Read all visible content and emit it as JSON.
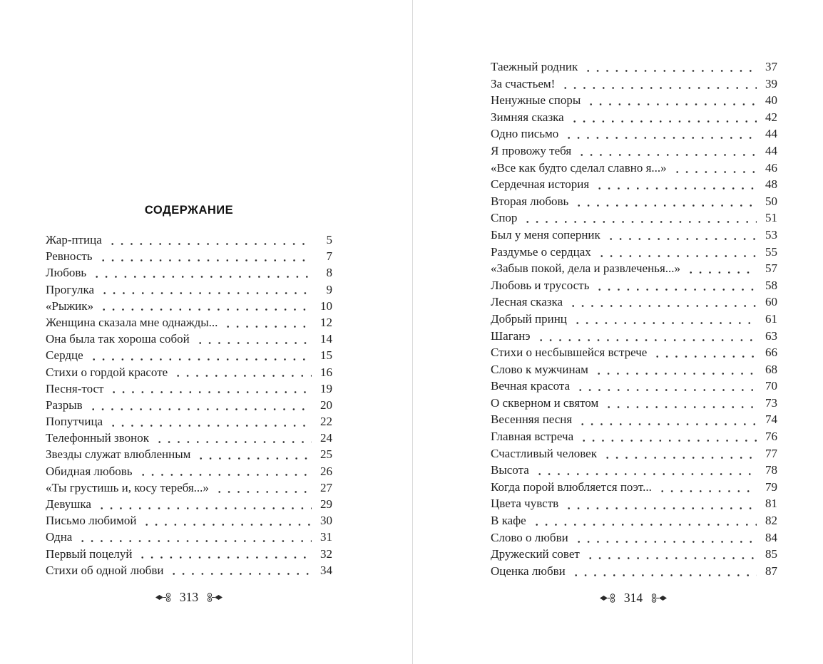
{
  "page_left": {
    "heading": "СОДЕРЖАНИЕ",
    "page_number": "313",
    "entries": [
      {
        "title": "Жар-птица",
        "page": "5"
      },
      {
        "title": "Ревность",
        "page": "7"
      },
      {
        "title": "Любовь",
        "page": "8"
      },
      {
        "title": "Прогулка",
        "page": "9"
      },
      {
        "title": "«Рыжик»",
        "page": "10"
      },
      {
        "title": "Женщина сказала мне однажды...",
        "page": "12"
      },
      {
        "title": "Она была так хороша собой",
        "page": "14"
      },
      {
        "title": "Сердце",
        "page": "15"
      },
      {
        "title": "Стихи о гордой красоте",
        "page": "16"
      },
      {
        "title": "Песня-тост",
        "page": "19"
      },
      {
        "title": "Разрыв",
        "page": "20"
      },
      {
        "title": "Попутчица",
        "page": "22"
      },
      {
        "title": "Телефонный звонок",
        "page": "24"
      },
      {
        "title": "Звезды служат влюбленным",
        "page": "25"
      },
      {
        "title": "Обидная любовь",
        "page": "26"
      },
      {
        "title": "«Ты грустишь и, косу теребя...»",
        "page": "27"
      },
      {
        "title": "Девушка",
        "page": "29"
      },
      {
        "title": "Письмо любимой",
        "page": "30"
      },
      {
        "title": "Одна",
        "page": "31"
      },
      {
        "title": "Первый поцелуй",
        "page": "32"
      },
      {
        "title": "Стихи об одной любви",
        "page": "34"
      }
    ]
  },
  "page_right": {
    "page_number": "314",
    "entries": [
      {
        "title": "Таежный родник",
        "page": "37"
      },
      {
        "title": "За счастьем!",
        "page": "39"
      },
      {
        "title": "Ненужные споры",
        "page": "40"
      },
      {
        "title": "Зимняя сказка",
        "page": "42"
      },
      {
        "title": "Одно письмо",
        "page": "44"
      },
      {
        "title": "Я провожу тебя",
        "page": "44"
      },
      {
        "title": "«Все как будто сделал славно я...»",
        "page": "46"
      },
      {
        "title": "Сердечная история",
        "page": "48"
      },
      {
        "title": "Вторая любовь",
        "page": "50"
      },
      {
        "title": "Спор",
        "page": "51"
      },
      {
        "title": "Был у меня соперник",
        "page": "53"
      },
      {
        "title": "Раздумье о сердцах",
        "page": "55"
      },
      {
        "title": "«Забыв покой, дела и развлеченья...»",
        "page": "57"
      },
      {
        "title": "Любовь и трусость",
        "page": "58"
      },
      {
        "title": "Лесная сказка",
        "page": "60"
      },
      {
        "title": "Добрый принц",
        "page": "61"
      },
      {
        "title": "Шаганэ",
        "page": "63"
      },
      {
        "title": "Стихи о несбывшейся встрече",
        "page": "66"
      },
      {
        "title": "Слово к мужчинам",
        "page": "68"
      },
      {
        "title": "Вечная красота",
        "page": "70"
      },
      {
        "title": "О скверном и святом",
        "page": "73"
      },
      {
        "title": "Весенняя песня",
        "page": "74"
      },
      {
        "title": "Главная встреча",
        "page": "76"
      },
      {
        "title": "Счастливый человек",
        "page": "77"
      },
      {
        "title": "Высота",
        "page": "78"
      },
      {
        "title": "Когда порой влюбляется поэт...",
        "page": "79"
      },
      {
        "title": "Цвета чувств",
        "page": "81"
      },
      {
        "title": "В кафе",
        "page": "82"
      },
      {
        "title": "Слово о любви",
        "page": "84"
      },
      {
        "title": "Дружеский совет",
        "page": "85"
      },
      {
        "title": "Оценка любви",
        "page": "87"
      }
    ]
  }
}
